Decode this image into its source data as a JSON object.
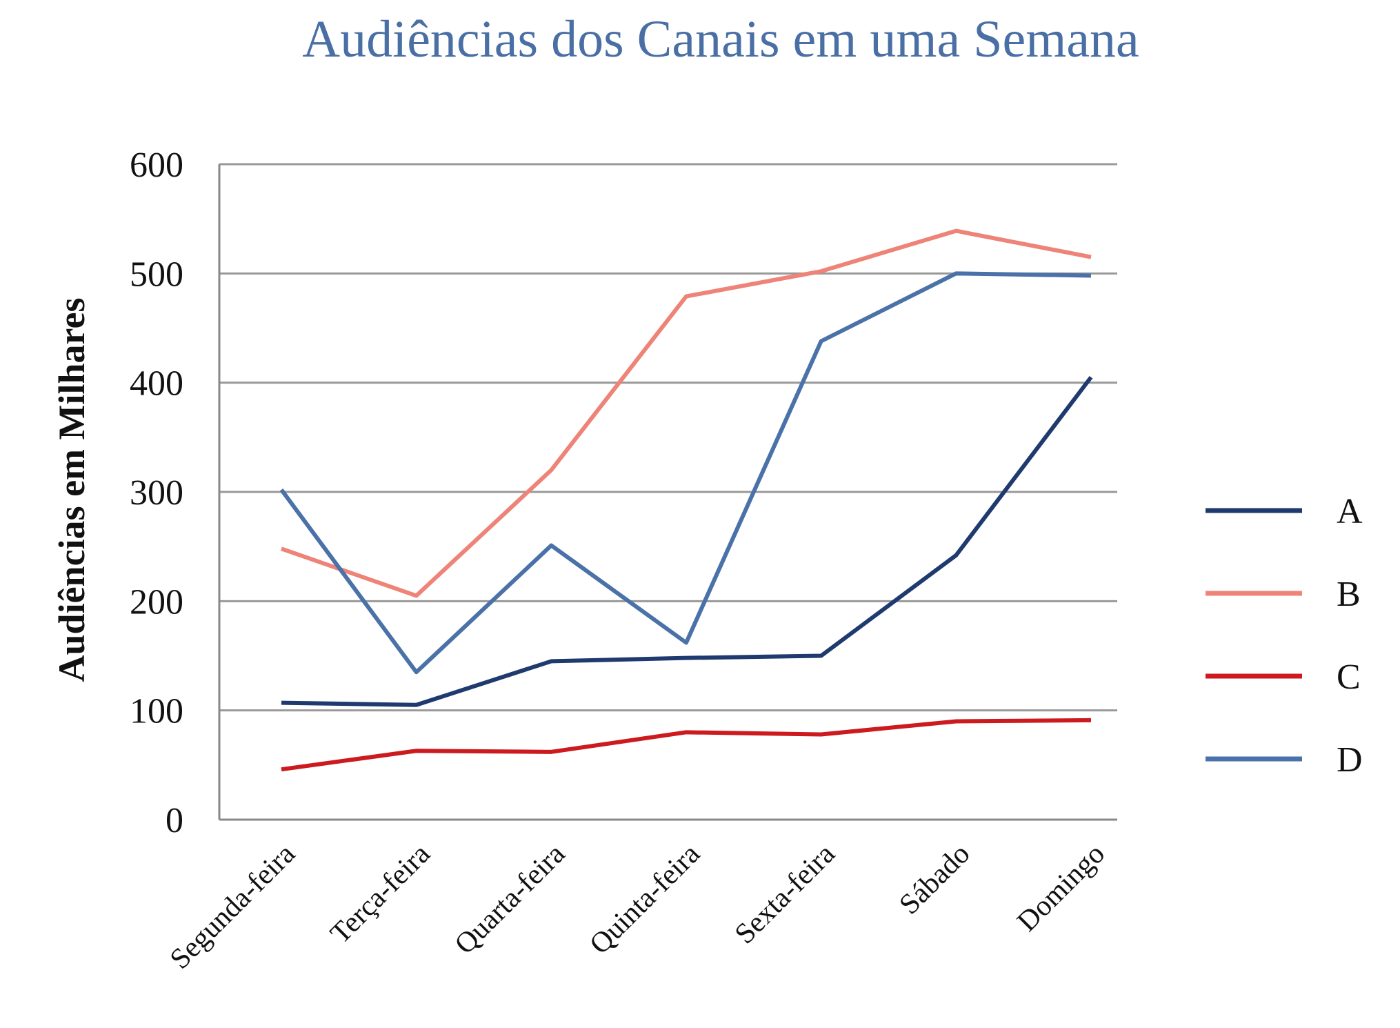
{
  "chart_data": {
    "type": "line",
    "title": "Audiências dos Canais em uma Semana",
    "xlabel": "",
    "ylabel": "Audiências em Milhares",
    "ylim": [
      0,
      600
    ],
    "yticks": [
      0,
      100,
      200,
      300,
      400,
      500,
      600
    ],
    "grid": true,
    "legend_position": "right",
    "categories": [
      "Segunda-feira",
      "Terça-feira",
      "Quarta-feira",
      "Quinta-feira",
      "Sexta-feira",
      "Sábado",
      "Domingo"
    ],
    "series": [
      {
        "name": "A",
        "color": "#1f3a6e",
        "values": [
          107,
          105,
          145,
          148,
          150,
          242,
          405
        ]
      },
      {
        "name": "B",
        "color": "#ee8377",
        "values": [
          248,
          205,
          320,
          479,
          502,
          539,
          515
        ]
      },
      {
        "name": "C",
        "color": "#cc1a1f",
        "values": [
          46,
          63,
          62,
          80,
          78,
          90,
          91
        ]
      },
      {
        "name": "D",
        "color": "#4a72a8",
        "values": [
          302,
          135,
          251,
          162,
          438,
          500,
          498
        ]
      }
    ],
    "colors": {
      "title": "#4a6fa5",
      "grid": "#999999",
      "axis": "#888888",
      "text": "#111111"
    }
  }
}
